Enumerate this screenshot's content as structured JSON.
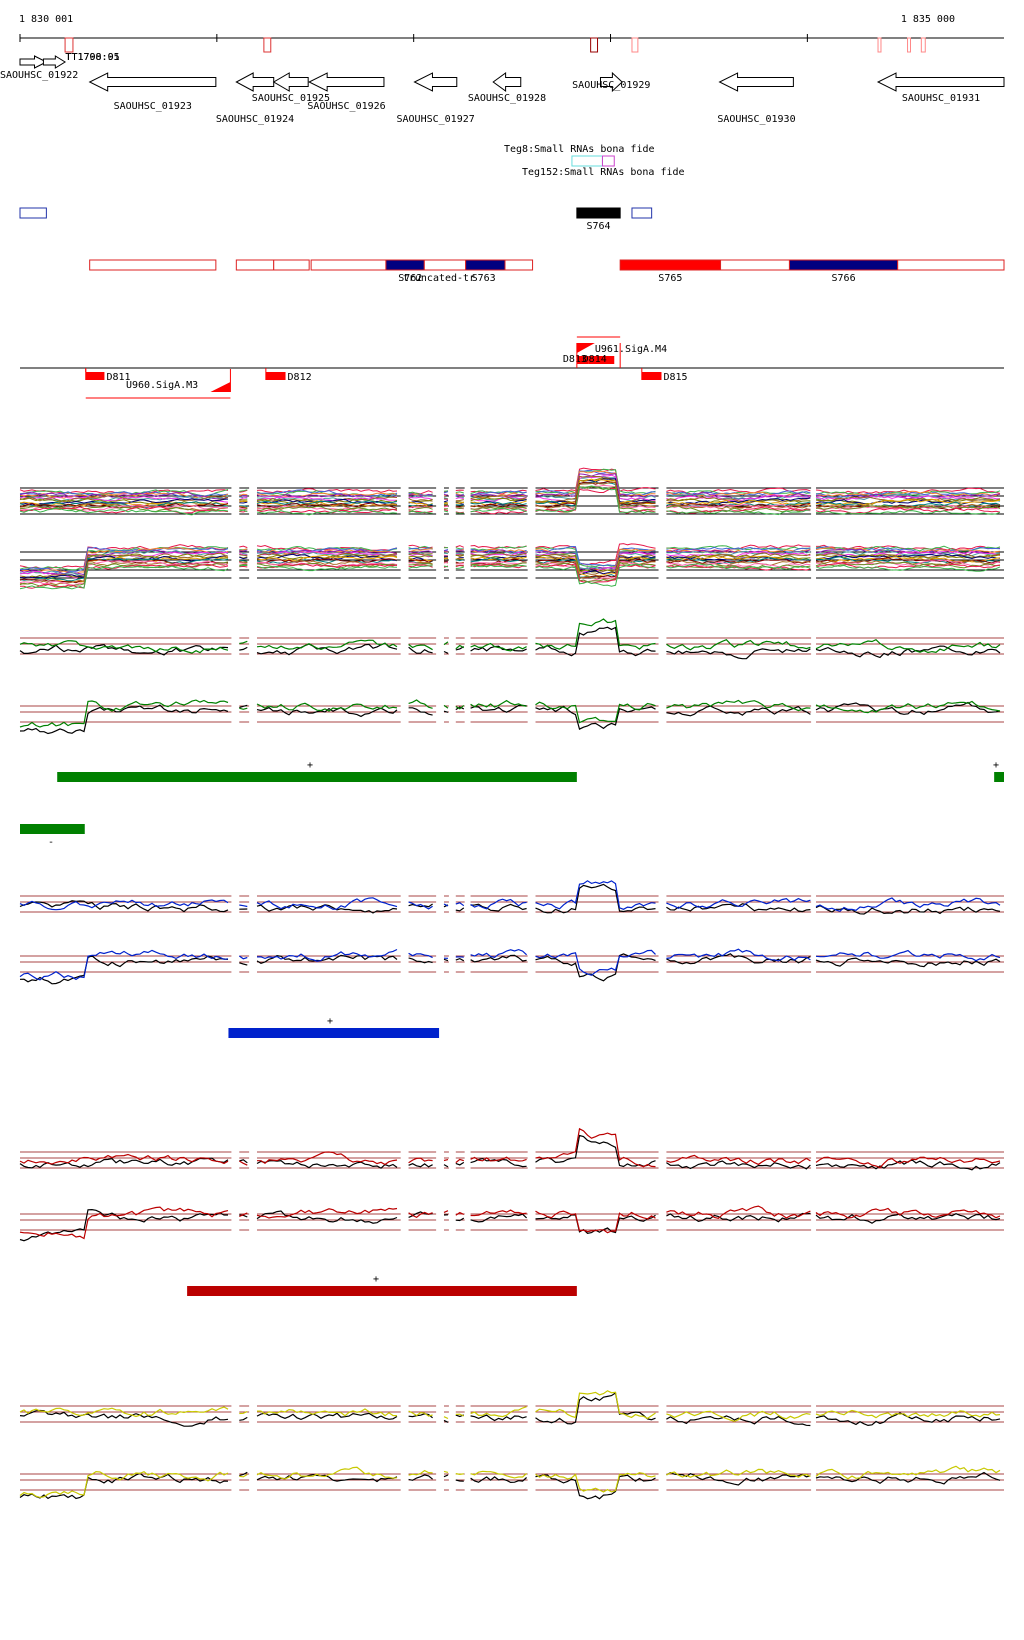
{
  "ruler": {
    "start_label": "1 830 001",
    "end_label": "1 835 000",
    "start": 1830001,
    "end": 1835000
  },
  "genes": [
    {
      "id": "g01922",
      "label": "SAOUHSC_01922",
      "start": 1830001,
      "end": 1830135,
      "strand": "+"
    },
    {
      "id": "tt17",
      "label": "TT1798:01",
      "overlay_label": "TT1700:95",
      "start": 1830120,
      "end": 1830230,
      "strand": "+"
    },
    {
      "id": "g01923",
      "label": "SAOUHSC_01923",
      "start": 1830355,
      "end": 1830996,
      "strand": "-"
    },
    {
      "id": "g01924",
      "label": "SAOUHSC_01924",
      "start": 1831100,
      "end": 1831290,
      "strand": "-"
    },
    {
      "id": "g01925",
      "label": "SAOUHSC_01925",
      "start": 1831290,
      "end": 1831465,
      "strand": "-"
    },
    {
      "id": "g01926",
      "label": "SAOUHSC_01926",
      "start": 1831470,
      "end": 1831850,
      "strand": "-"
    },
    {
      "id": "g01927",
      "label": "SAOUHSC_01927",
      "start": 1832005,
      "end": 1832220,
      "strand": "-"
    },
    {
      "id": "g01928",
      "label": "SAOUHSC_01928",
      "start": 1832405,
      "end": 1832545,
      "strand": "-"
    },
    {
      "id": "g01929",
      "label": "SAOUHSC_01929",
      "start": 1832950,
      "end": 1833060,
      "strand": "+"
    },
    {
      "id": "g01930",
      "label": "SAOUHSC_01930",
      "start": 1833555,
      "end": 1833930,
      "strand": "-"
    },
    {
      "id": "g01931",
      "label": "SAOUHSC_01931",
      "start": 1834360,
      "end": 1835000,
      "strand": "-"
    }
  ],
  "small_rnas": [
    {
      "id": "teg8",
      "label": "Teg8:Small RNAs bona fide",
      "start": 1832805,
      "end": 1832960,
      "color": "#66dddd"
    },
    {
      "id": "teg152",
      "label": "Teg152:Small RNAs bona fide",
      "start": 1832960,
      "end": 1833020,
      "color": "#cc44cc"
    }
  ],
  "s_segments": [
    {
      "id": "s_small_left",
      "label": "",
      "start": 1830001,
      "end": 1830135,
      "fill": "#ffffff",
      "stroke": "#2233aa"
    },
    {
      "id": "s764",
      "label": "S764",
      "start": 1832830,
      "end": 1833050,
      "fill": "#000000",
      "stroke": "#000000"
    },
    {
      "id": "s_small_right",
      "label": "",
      "start": 1833110,
      "end": 1833210,
      "fill": "#ffffff",
      "stroke": "#2233aa"
    }
  ],
  "transcripts": [
    {
      "id": "s_a",
      "label": "",
      "start": 1830355,
      "end": 1830996,
      "fill": "#ffffff",
      "stroke": "#dd2222"
    },
    {
      "id": "s_b",
      "label": "",
      "start": 1831100,
      "end": 1831290,
      "fill": "#ffffff",
      "stroke": "#dd2222"
    },
    {
      "id": "s_c",
      "label": "",
      "start": 1831290,
      "end": 1831470,
      "fill": "#ffffff",
      "stroke": "#dd2222"
    },
    {
      "id": "s_d",
      "label": "",
      "start": 1831480,
      "end": 1831860,
      "fill": "#ffffff",
      "stroke": "#dd2222"
    },
    {
      "id": "s762",
      "label": "S762",
      "start": 1831860,
      "end": 1832055,
      "fill": "#000080",
      "stroke": "#dd2222"
    },
    {
      "id": "s_trunc",
      "label": "truncated-tr",
      "start": 1832055,
      "end": 1832265,
      "fill": "#ffffff",
      "stroke": "#dd2222"
    },
    {
      "id": "s763",
      "label": "S763",
      "start": 1832265,
      "end": 1832465,
      "fill": "#000080",
      "stroke": "#dd2222"
    },
    {
      "id": "s_e",
      "label": "",
      "start": 1832465,
      "end": 1832605,
      "fill": "#ffffff",
      "stroke": "#dd2222"
    },
    {
      "id": "s765",
      "label": "S765",
      "start": 1833050,
      "end": 1833560,
      "fill": "#ff0000",
      "stroke": "#dd2222"
    },
    {
      "id": "s_f",
      "label": "",
      "start": 1833560,
      "end": 1833910,
      "fill": "#ffffff",
      "stroke": "#dd2222"
    },
    {
      "id": "s766",
      "label": "S766",
      "start": 1833910,
      "end": 1834460,
      "fill": "#000080",
      "stroke": "#dd2222"
    },
    {
      "id": "s_g",
      "label": "",
      "start": 1834460,
      "end": 1835000,
      "fill": "#ffffff",
      "stroke": "#dd2222"
    }
  ],
  "promoters": [
    {
      "id": "d811",
      "label": "D811",
      "start": 1830335,
      "end": 1830430
    },
    {
      "id": "d812",
      "label": "D812",
      "start": 1831250,
      "end": 1831350
    },
    {
      "id": "d813",
      "label": "D813",
      "start": 1832830,
      "end": 1832890
    },
    {
      "id": "d814",
      "label": "D814",
      "start": 1832890,
      "end": 1833020
    },
    {
      "id": "d815",
      "label": "D815",
      "start": 1833160,
      "end": 1833260
    }
  ],
  "sigma_sites": [
    {
      "id": "u960",
      "label": "U960.SigA.M3",
      "start": 1830335,
      "end": 1831070
    },
    {
      "id": "u961",
      "label": "U961.SigA.M4",
      "start": 1832830,
      "end": 1833050
    }
  ],
  "tiling_breaks": [
    1831100,
    1831190,
    1831960,
    1832140,
    1832605,
    1833270
  ],
  "groups": [
    {
      "id": "green",
      "color": "#008000",
      "sign_top": "+",
      "sign_bottom": "-",
      "top_bars": [
        {
          "start": 1830190,
          "end": 1832830
        },
        {
          "start": 1834950,
          "end": 1835000
        }
      ],
      "bottom_bars": [
        {
          "start": 1830001,
          "end": 1830330
        }
      ]
    },
    {
      "id": "blue",
      "color": "#0022cc",
      "sign_top": "+",
      "sign_bottom": "",
      "top_bars": [
        {
          "start": 1831060,
          "end": 1832130
        }
      ],
      "bottom_bars": []
    },
    {
      "id": "darkred",
      "color": "#bb0000",
      "sign_top": "+",
      "sign_bottom": "",
      "top_bars": [
        {
          "start": 1830850,
          "end": 1832830
        }
      ],
      "bottom_bars": []
    },
    {
      "id": "yellow",
      "color": "#c8c800",
      "sign_top": "",
      "sign_bottom": "",
      "top_bars": [],
      "bottom_bars": []
    }
  ],
  "colors": {
    "gene_stroke": "#000000",
    "refline": "#aa4444",
    "black_track": "#000000",
    "palette": [
      "#e6194b",
      "#3cb44b",
      "#4363d8",
      "#f58231",
      "#911eb4",
      "#46a0a0",
      "#f032e6",
      "#9a6324",
      "#808000",
      "#000075",
      "#e6a000",
      "#008080",
      "#800000",
      "#aa6e28",
      "#ff69b4",
      "#6b8e23"
    ]
  }
}
